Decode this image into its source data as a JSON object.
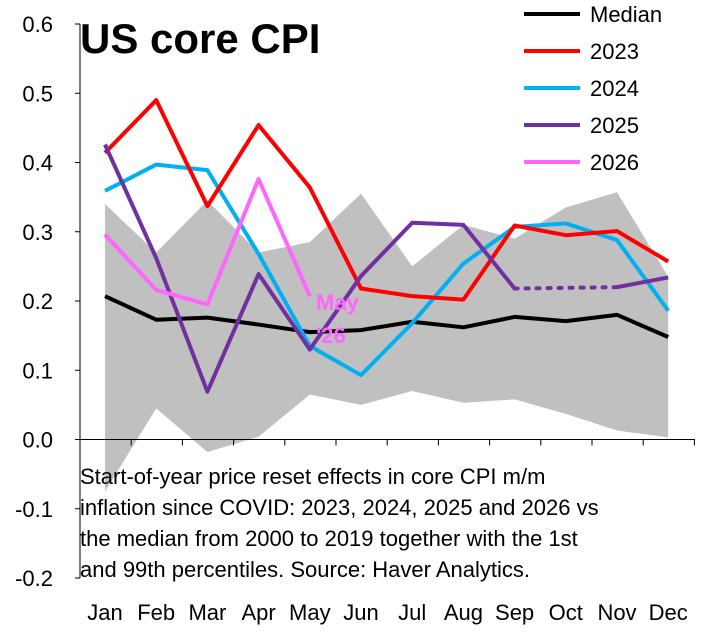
{
  "chart_data": {
    "type": "line",
    "title": "US core CPI",
    "categories": [
      "Jan",
      "Feb",
      "Mar",
      "Apr",
      "May",
      "Jun",
      "Jul",
      "Aug",
      "Sep",
      "Oct",
      "Nov",
      "Dec"
    ],
    "ylim": [
      -0.2,
      0.6
    ],
    "yticks": [
      "0.6",
      "0.5",
      "0.4",
      "0.3",
      "0.2",
      "0.1",
      "0.0",
      "-0.1",
      "-0.2"
    ],
    "ytick_values": [
      0.6,
      0.5,
      0.4,
      0.3,
      0.2,
      0.1,
      0.0,
      -0.1,
      -0.2
    ],
    "grid": false,
    "legend_position": "top-right",
    "band": {
      "upper": [
        0.34,
        0.27,
        0.345,
        0.27,
        0.285,
        0.355,
        0.25,
        0.31,
        0.29,
        0.335,
        0.357,
        0.235
      ],
      "lower": [
        -0.075,
        0.045,
        -0.018,
        0.004,
        0.065,
        0.05,
        0.07,
        0.053,
        0.058,
        0.037,
        0.013,
        0.003
      ],
      "color": "#c0c0c0"
    },
    "series": [
      {
        "name": "Median",
        "color": "#000000",
        "values": [
          0.207,
          0.173,
          0.176,
          0.166,
          0.155,
          0.158,
          0.17,
          0.162,
          0.177,
          0.171,
          0.18,
          0.148
        ]
      },
      {
        "name": "2023",
        "color": "#ff0000",
        "values": [
          0.414,
          0.49,
          0.337,
          0.454,
          0.364,
          0.218,
          0.207,
          0.202,
          0.309,
          0.295,
          0.301,
          0.257
        ]
      },
      {
        "name": "2024",
        "color": "#00b0f0",
        "values": [
          0.359,
          0.397,
          0.389,
          0.268,
          0.135,
          0.093,
          0.168,
          0.254,
          0.307,
          0.312,
          0.288,
          0.186
        ]
      },
      {
        "name": "2025",
        "color": "#7030a0",
        "values": [
          0.426,
          0.262,
          0.069,
          0.239,
          0.13,
          0.236,
          0.313,
          0.31,
          0.218,
          null,
          0.22,
          0.234
        ],
        "dashed_from": 8,
        "dashed_to": 10
      },
      {
        "name": "2026",
        "color": "#ff66ff",
        "values": [
          0.296,
          0.216,
          0.195,
          0.376,
          0.207,
          null,
          null,
          null,
          null,
          null,
          null,
          null
        ]
      }
    ],
    "annotation": {
      "line1": "May",
      "line2": "'26",
      "color": "#ff66ff"
    },
    "caption_lines": [
      "Start-of-year price reset effects in core CPI m/m",
      "inflation since COVID: 2023, 2024, 2025 and 2026 vs",
      "the median from 2000 to 2019 together with the 1st",
      "and 99th percentiles. Source: Haver Analytics."
    ]
  }
}
